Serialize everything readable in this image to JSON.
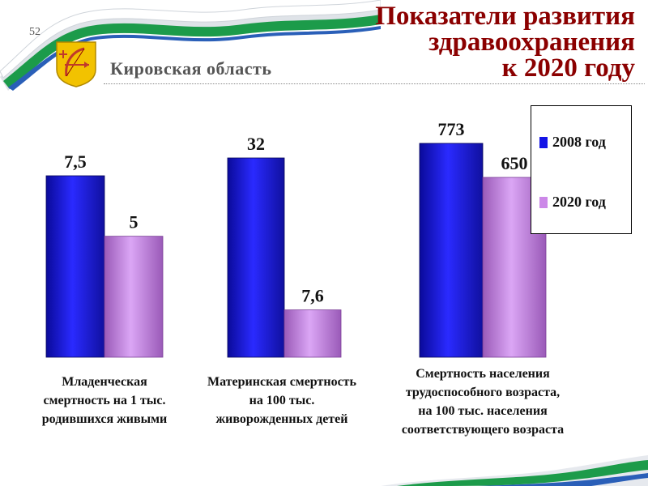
{
  "header": {
    "slide_number": "52",
    "region": "Кировская область",
    "title_lines": [
      "Показатели развития",
      "здравоохранения",
      "к 2020 году"
    ]
  },
  "colors": {
    "series_2008": "#1414e6",
    "series_2020": "#cc88e8",
    "title": "#8b0000"
  },
  "chart_data": {
    "type": "bar",
    "categories": [
      "Младенческая смертность на 1 тыс. родившихся живыми",
      "Материнская смертность на 100 тыс. живорожденных детей",
      "Смертность населения трудоспособного возраста, на 100 тыс. населения соответствующего возраста"
    ],
    "category_label_lines": [
      [
        "Младенческая",
        "смертность на 1 тыс.",
        "родившихся живыми"
      ],
      [
        "Материнская смертность",
        "на 100 тыс.",
        "живорожденных детей"
      ],
      [
        "Смертность населения",
        "трудоспособного возраста,",
        "на 100   тыс. населения",
        "соответствующего возраста"
      ]
    ],
    "series": [
      {
        "name": "2008 год",
        "values": [
          7.5,
          32,
          773
        ],
        "labels": [
          "7,5",
          "32",
          "773"
        ]
      },
      {
        "name": "2020 год",
        "values": [
          5,
          7.6,
          650
        ],
        "labels": [
          "5",
          "7,6",
          "650"
        ]
      }
    ],
    "legend_position": "top-right",
    "grid": false,
    "note": "each category is scaled independently"
  }
}
